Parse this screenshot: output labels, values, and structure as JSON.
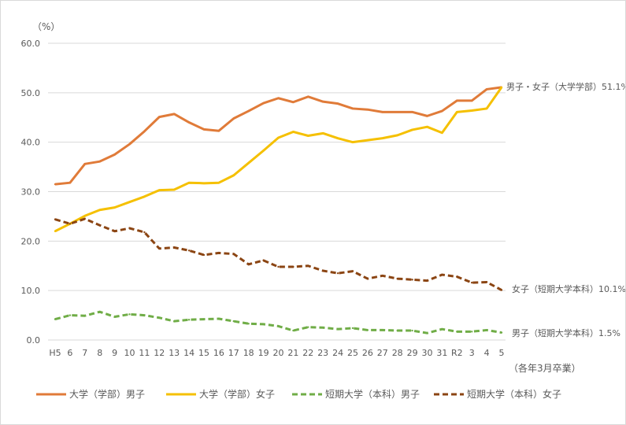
{
  "chart_data": {
    "type": "line",
    "unit_label": "（%）",
    "x_note": "（各年3月卒業）",
    "categories": [
      "H5",
      "6",
      "7",
      "8",
      "9",
      "10",
      "11",
      "12",
      "13",
      "14",
      "15",
      "16",
      "17",
      "18",
      "19",
      "20",
      "21",
      "22",
      "23",
      "24",
      "25",
      "26",
      "27",
      "28",
      "29",
      "30",
      "31",
      "R2",
      "3",
      "4",
      "5"
    ],
    "ylim": [
      0,
      60
    ],
    "yticks": [
      "0.0",
      "10.0",
      "20.0",
      "30.0",
      "40.0",
      "50.0",
      "60.0"
    ],
    "grid": true,
    "legend_position": "bottom",
    "series": [
      {
        "name": "大学（学部）男子",
        "color": "#e07b39",
        "dash": false,
        "values": [
          31.5,
          31.8,
          35.6,
          36.1,
          37.5,
          39.6,
          42.2,
          45.1,
          45.7,
          44.0,
          42.6,
          42.3,
          44.8,
          46.3,
          47.9,
          48.9,
          48.1,
          49.2,
          48.2,
          47.8,
          46.8,
          46.6,
          46.1,
          46.1,
          46.1,
          45.3,
          46.3,
          48.4,
          48.4,
          50.7,
          51.1
        ]
      },
      {
        "name": "大学（学部）女子",
        "color": "#f5c000",
        "dash": false,
        "values": [
          22.0,
          23.5,
          25.1,
          26.3,
          26.8,
          27.9,
          29.0,
          30.3,
          30.4,
          31.8,
          31.7,
          31.8,
          33.3,
          35.8,
          38.3,
          40.9,
          42.1,
          41.3,
          41.8,
          40.8,
          40.0,
          40.4,
          40.8,
          41.4,
          42.5,
          43.1,
          41.9,
          46.1,
          46.4,
          46.8,
          51.1
        ]
      },
      {
        "name": "短期大学（本科）男子",
        "color": "#70ad47",
        "dash": true,
        "values": [
          4.2,
          5.0,
          4.9,
          5.7,
          4.7,
          5.2,
          5.0,
          4.5,
          3.8,
          4.1,
          4.2,
          4.3,
          3.8,
          3.3,
          3.2,
          2.8,
          1.9,
          2.6,
          2.5,
          2.2,
          2.4,
          2.0,
          2.0,
          1.9,
          1.9,
          1.4,
          2.2,
          1.7,
          1.7,
          2.0,
          1.5
        ]
      },
      {
        "name": "短期大学（本科）女子",
        "color": "#8b4513",
        "dash": true,
        "values": [
          24.4,
          23.5,
          24.5,
          23.2,
          22.0,
          22.6,
          21.8,
          18.5,
          18.7,
          18.1,
          17.2,
          17.6,
          17.4,
          15.3,
          16.1,
          14.8,
          14.8,
          15.0,
          14.0,
          13.5,
          13.9,
          12.4,
          13.0,
          12.4,
          12.2,
          12.0,
          13.2,
          12.8,
          11.6,
          11.7,
          10.1
        ]
      }
    ],
    "annotations": [
      {
        "text": "男子・女子（大学学部）51.1%",
        "value": 51.1
      },
      {
        "text": "女子（短期大学本科）10.1%",
        "value": 10.1
      },
      {
        "text": "男子（短期大学本科）1.5%",
        "value": 1.5
      }
    ]
  }
}
